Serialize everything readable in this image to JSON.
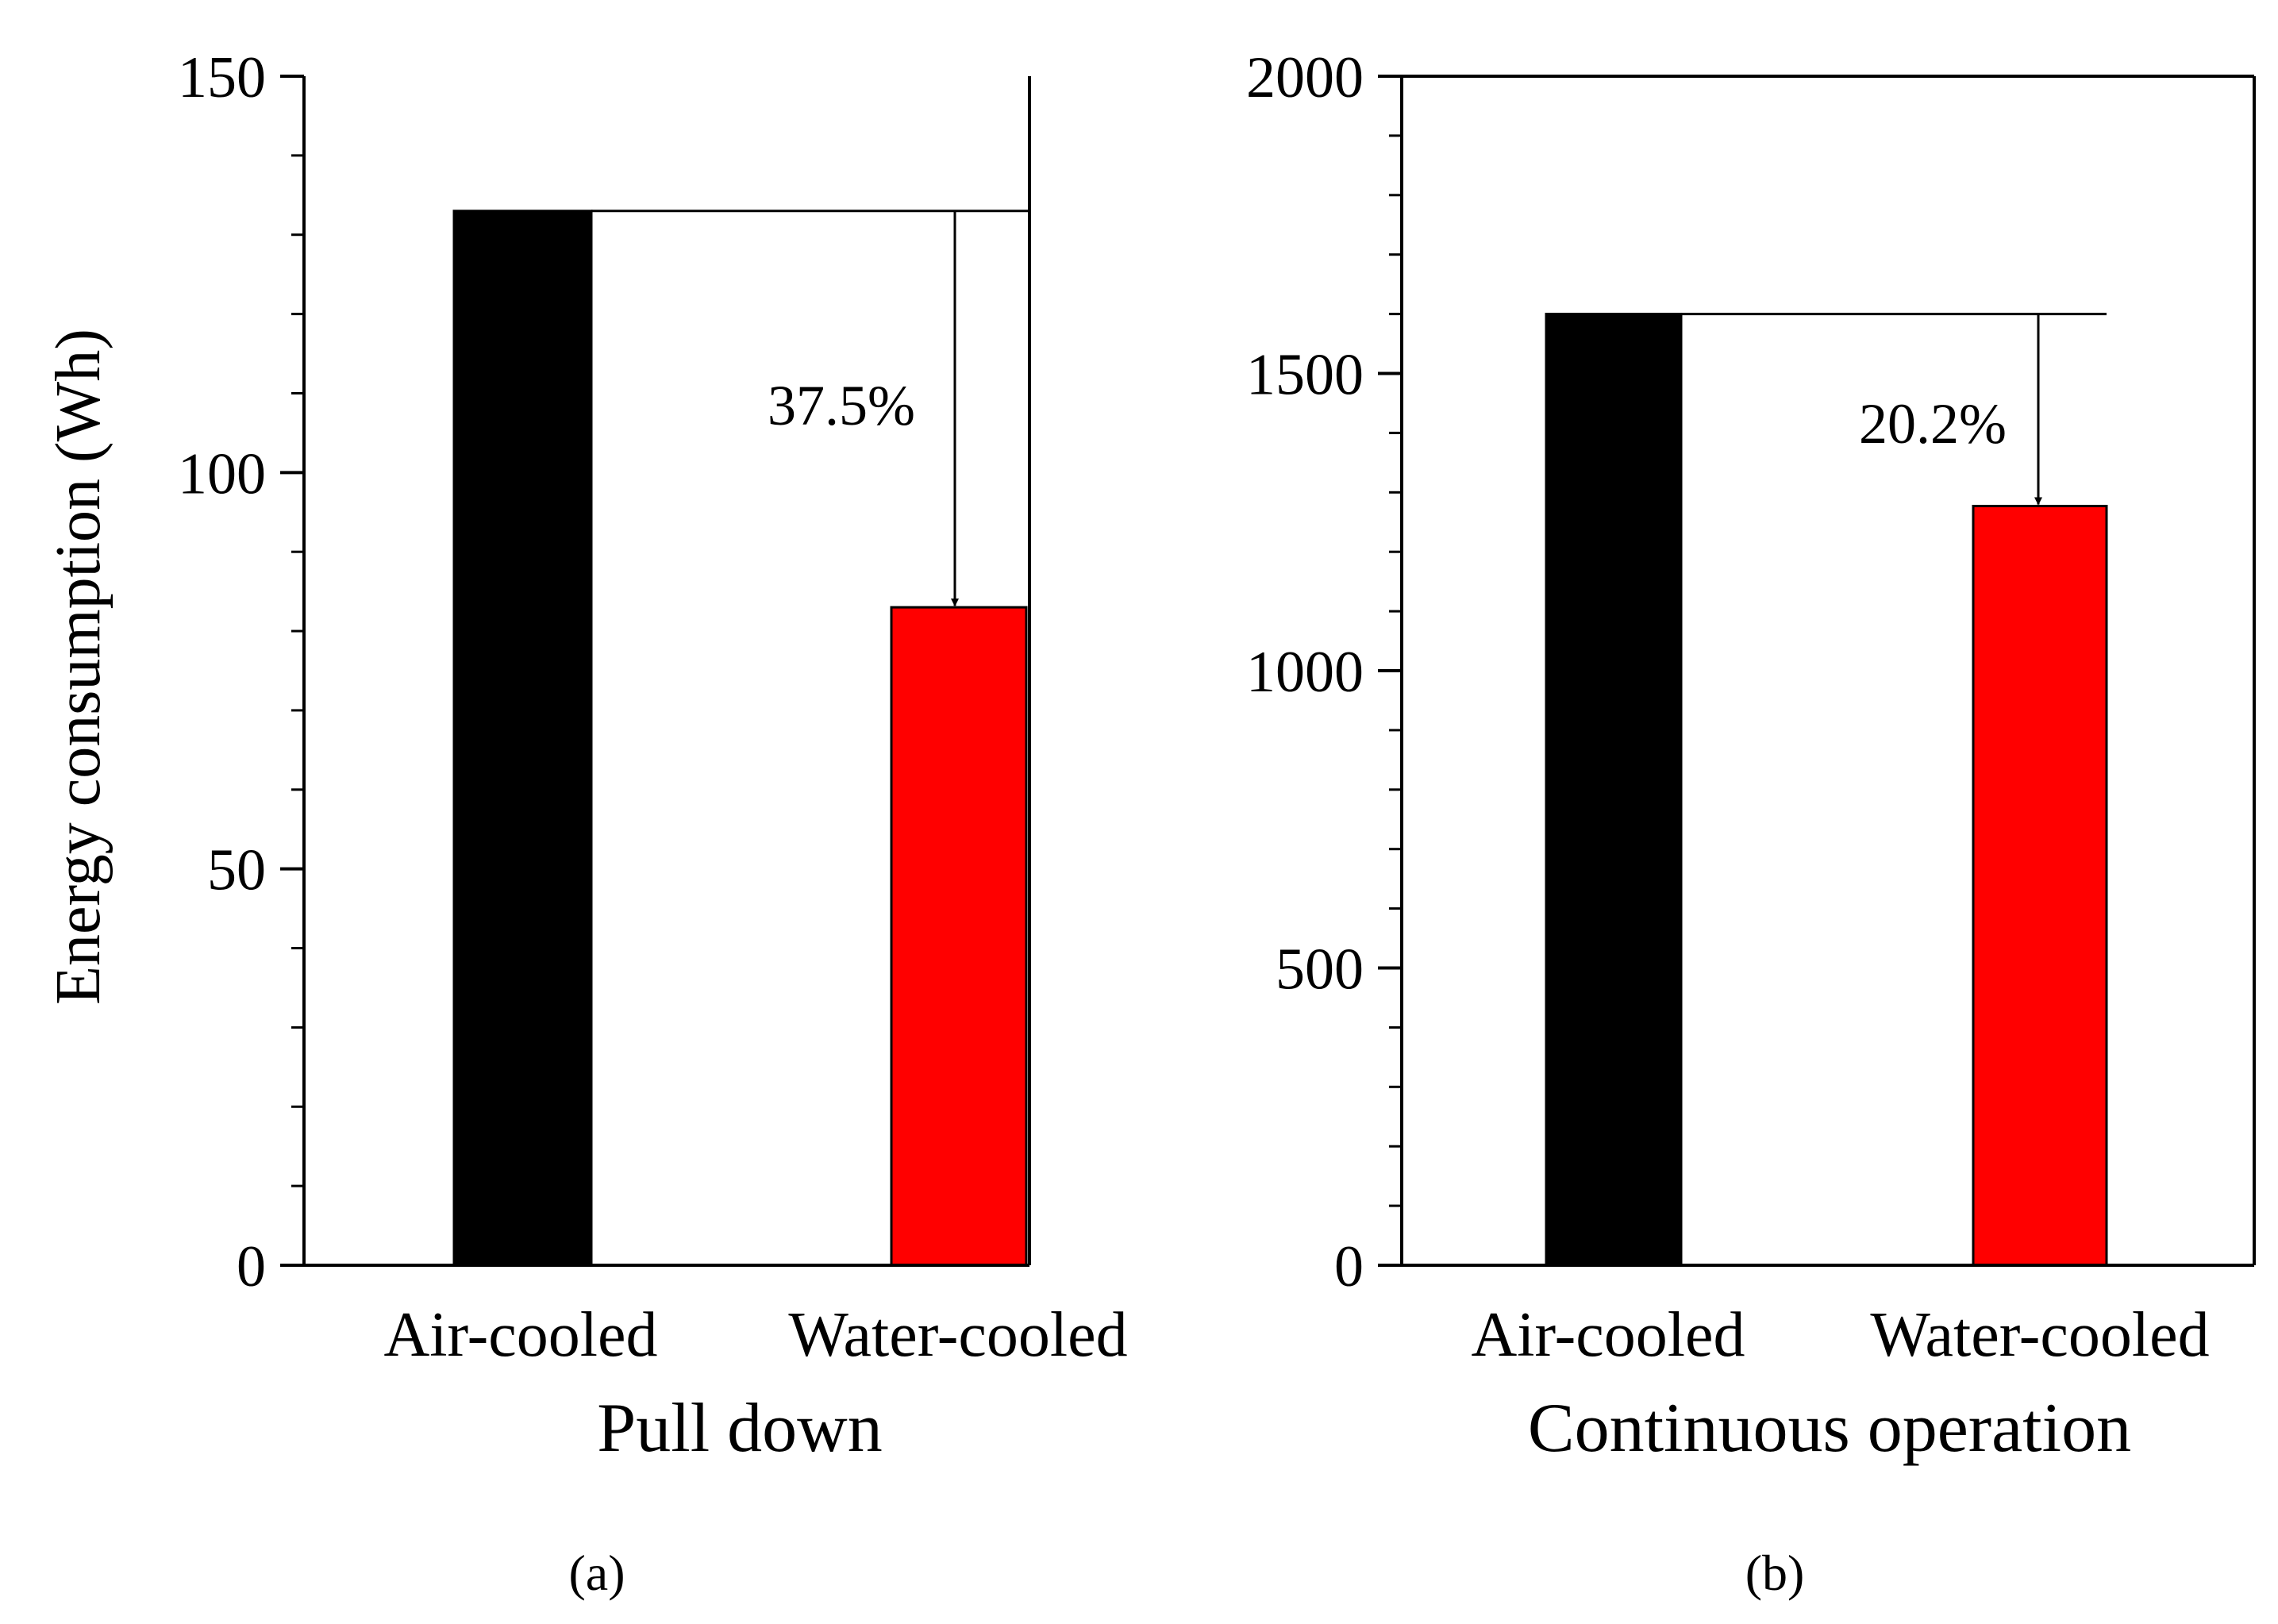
{
  "chart_data": [
    {
      "panel": "a",
      "type": "bar",
      "categories": [
        "Air-cooled",
        "Water-cooled"
      ],
      "values": [
        133,
        83
      ],
      "colors": [
        "#000000",
        "#ff0000"
      ],
      "ylabel": "Energy consumption (Wh)",
      "xlabel": "Pull down",
      "ylim": [
        0,
        150
      ],
      "yticks": [
        0,
        50,
        100,
        150
      ],
      "tick_labels": [
        "0",
        "50",
        "100",
        "150"
      ],
      "minor_tick_step": 10,
      "annotation": {
        "text": "37.5%",
        "from_value": 133,
        "to_value": 83
      },
      "panel_label": "(a)"
    },
    {
      "panel": "b",
      "type": "bar",
      "categories": [
        "Air-cooled",
        "Water-cooled"
      ],
      "values": [
        1600,
        1277
      ],
      "colors": [
        "#000000",
        "#ff0000"
      ],
      "ylabel": "",
      "xlabel": "Continuous operation",
      "ylim": [
        0,
        2000
      ],
      "yticks": [
        0,
        500,
        1000,
        1500,
        2000
      ],
      "tick_labels": [
        "0",
        "500",
        "1000",
        "1500",
        "2000"
      ],
      "minor_tick_step": 100,
      "annotation": {
        "text": "20.2%",
        "from_value": 1600,
        "to_value": 1277
      },
      "panel_label": "(b)"
    }
  ]
}
